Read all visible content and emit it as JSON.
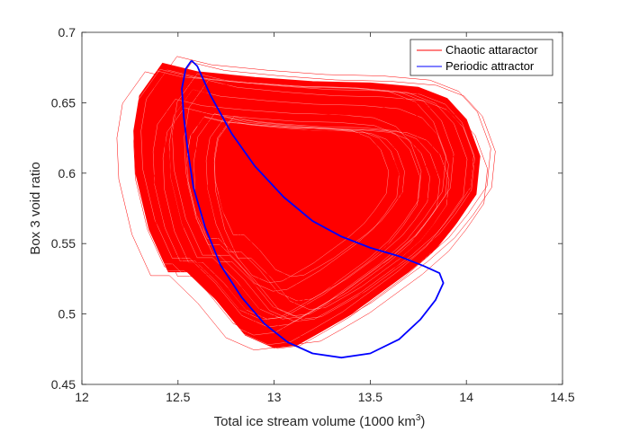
{
  "chart_data": {
    "type": "line",
    "title": "",
    "xlabel": "Total ice stream volume (1000 km",
    "xlabel_sup": "3",
    "xlabel_suffix": ")",
    "ylabel": "Box 3 void ratio",
    "xlim": [
      12,
      14.5
    ],
    "ylim": [
      0.45,
      0.7
    ],
    "xticks": [
      12,
      12.5,
      13,
      13.5,
      14,
      14.5
    ],
    "xtick_labels": [
      "12",
      "12.5",
      "13",
      "13.5",
      "14",
      "14.5"
    ],
    "yticks": [
      0.45,
      0.5,
      0.55,
      0.6,
      0.65,
      0.7
    ],
    "ytick_labels": [
      "0.45",
      "0.5",
      "0.55",
      "0.6",
      "0.65",
      "0.7"
    ],
    "grid": false,
    "legend_position": "top-right",
    "series": [
      {
        "name": "Chaotic attaractor",
        "color": "#ff0000",
        "x": [
          12.42,
          12.6,
          12.9,
          13.2,
          13.5,
          13.75,
          13.9,
          14.0,
          14.07,
          14.05,
          13.95,
          13.85,
          13.7,
          13.55,
          13.4,
          13.25,
          13.12,
          13.0,
          12.85,
          12.7,
          12.55,
          12.45,
          12.35,
          12.28,
          12.27,
          12.3,
          12.42
        ],
        "y": [
          0.678,
          0.672,
          0.668,
          0.665,
          0.664,
          0.661,
          0.653,
          0.638,
          0.612,
          0.585,
          0.565,
          0.548,
          0.53,
          0.515,
          0.5,
          0.488,
          0.478,
          0.476,
          0.485,
          0.51,
          0.53,
          0.53,
          0.56,
          0.6,
          0.63,
          0.655,
          0.678
        ]
      },
      {
        "name": "Periodic attractor",
        "color": "#0000ff",
        "x": [
          12.57,
          12.6,
          12.67,
          12.78,
          12.9,
          13.05,
          13.2,
          13.35,
          13.5,
          13.65,
          13.78,
          13.86,
          13.88,
          13.84,
          13.76,
          13.65,
          13.5,
          13.35,
          13.2,
          13.07,
          12.95,
          12.83,
          12.72,
          12.64,
          12.58,
          12.55,
          12.53,
          12.52,
          12.54,
          12.57
        ],
        "y": [
          0.68,
          0.676,
          0.655,
          0.628,
          0.605,
          0.583,
          0.566,
          0.555,
          0.547,
          0.541,
          0.534,
          0.529,
          0.522,
          0.51,
          0.496,
          0.482,
          0.472,
          0.469,
          0.472,
          0.48,
          0.493,
          0.512,
          0.535,
          0.562,
          0.59,
          0.617,
          0.64,
          0.66,
          0.674,
          0.68
        ]
      }
    ]
  }
}
